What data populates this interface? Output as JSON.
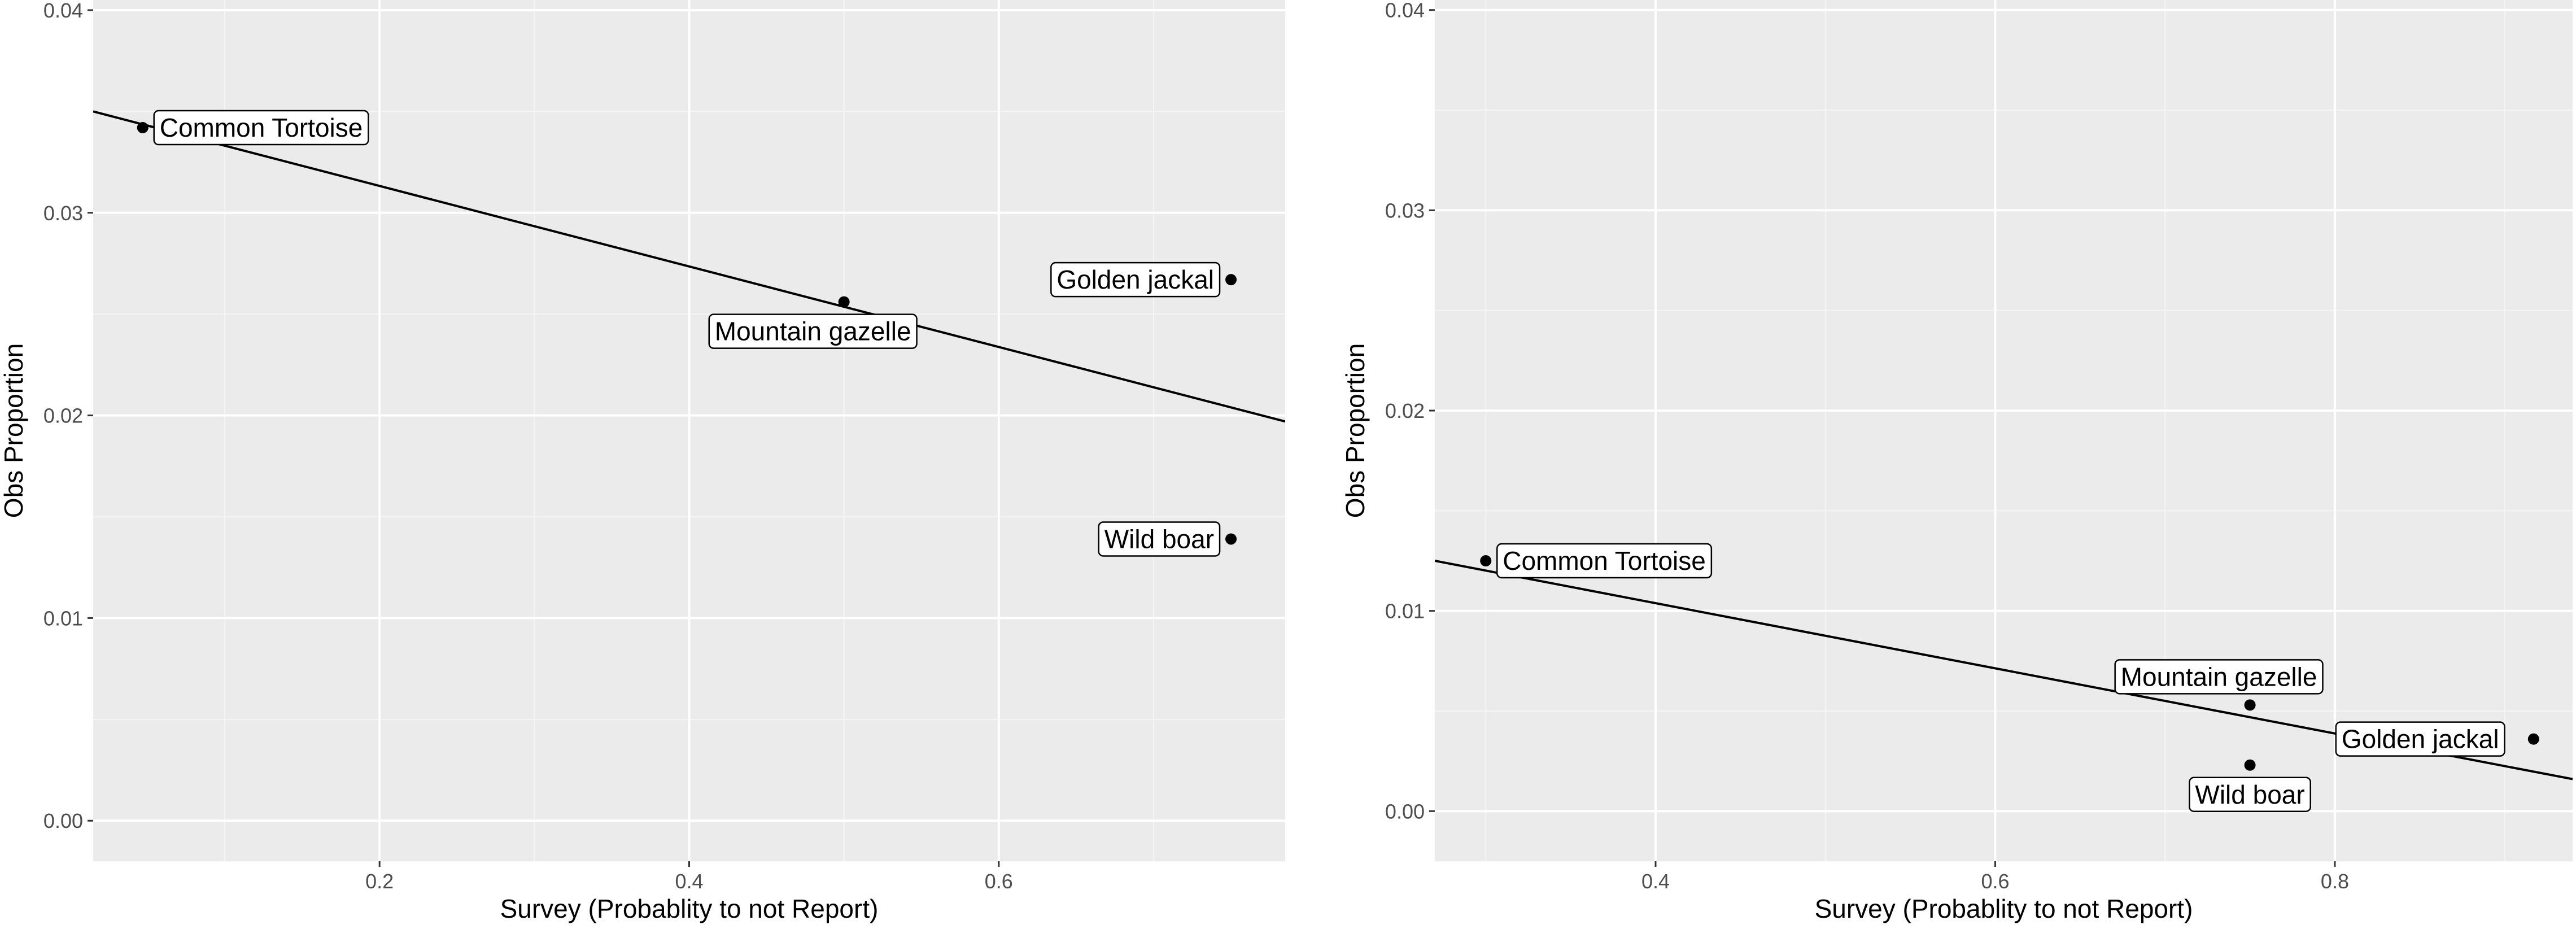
{
  "colors": {
    "panel_background": "#ebebeb",
    "grid_major": "#ffffff",
    "grid_minor": "#f5f5f5",
    "point": "#000000",
    "line": "#000000",
    "label_fill": "#ffffff"
  },
  "chart_data": [
    {
      "type": "scatter",
      "xlabel": "Survey (Probablity to not Report)",
      "ylabel": "Obs Proportion",
      "xlim": [
        0.015,
        0.785
      ],
      "ylim": [
        -0.002,
        0.0405
      ],
      "xticks": [
        0.2,
        0.4,
        0.6
      ],
      "xtick_labels": [
        "0.2",
        "0.4",
        "0.6"
      ],
      "yticks": [
        0.0,
        0.01,
        0.02,
        0.03,
        0.04
      ],
      "ytick_labels": [
        "0.00",
        "0.01",
        "0.02",
        "0.03",
        "0.04"
      ],
      "grid": true,
      "points": [
        {
          "label": "Common Tortoise",
          "x": 0.047,
          "y": 0.0342
        },
        {
          "label": "Mountain gazelle",
          "x": 0.5,
          "y": 0.0256
        },
        {
          "label": "Golden jackal",
          "x": 0.75,
          "y": 0.0267
        },
        {
          "label": "Wild boar",
          "x": 0.75,
          "y": 0.0139
        }
      ],
      "fit_line": {
        "x": [
          0.015,
          0.785
        ],
        "y": [
          0.035,
          0.0197
        ]
      }
    },
    {
      "type": "scatter",
      "xlabel": "Survey (Probablity to not Report)",
      "ylabel": "Obs Proportion",
      "xlim": [
        0.27,
        0.94
      ],
      "ylim": [
        -0.0025,
        0.0405
      ],
      "xticks": [
        0.4,
        0.6,
        0.8
      ],
      "xtick_labels": [
        "0.4",
        "0.6",
        "0.8"
      ],
      "yticks": [
        0.0,
        0.01,
        0.02,
        0.03,
        0.04
      ],
      "ytick_labels": [
        "0.00",
        "0.01",
        "0.02",
        "0.03",
        "0.04"
      ],
      "grid": true,
      "points": [
        {
          "label": "Common Tortoise",
          "x": 0.3,
          "y": 0.0125
        },
        {
          "label": "Mountain gazelle",
          "x": 0.75,
          "y": 0.0053
        },
        {
          "label": "Golden jackal",
          "x": 0.917,
          "y": 0.0036
        },
        {
          "label": "Wild boar",
          "x": 0.75,
          "y": 0.0023
        }
      ],
      "fit_line": {
        "x": [
          0.27,
          0.94
        ],
        "y": [
          0.0125,
          0.0016
        ]
      }
    }
  ]
}
